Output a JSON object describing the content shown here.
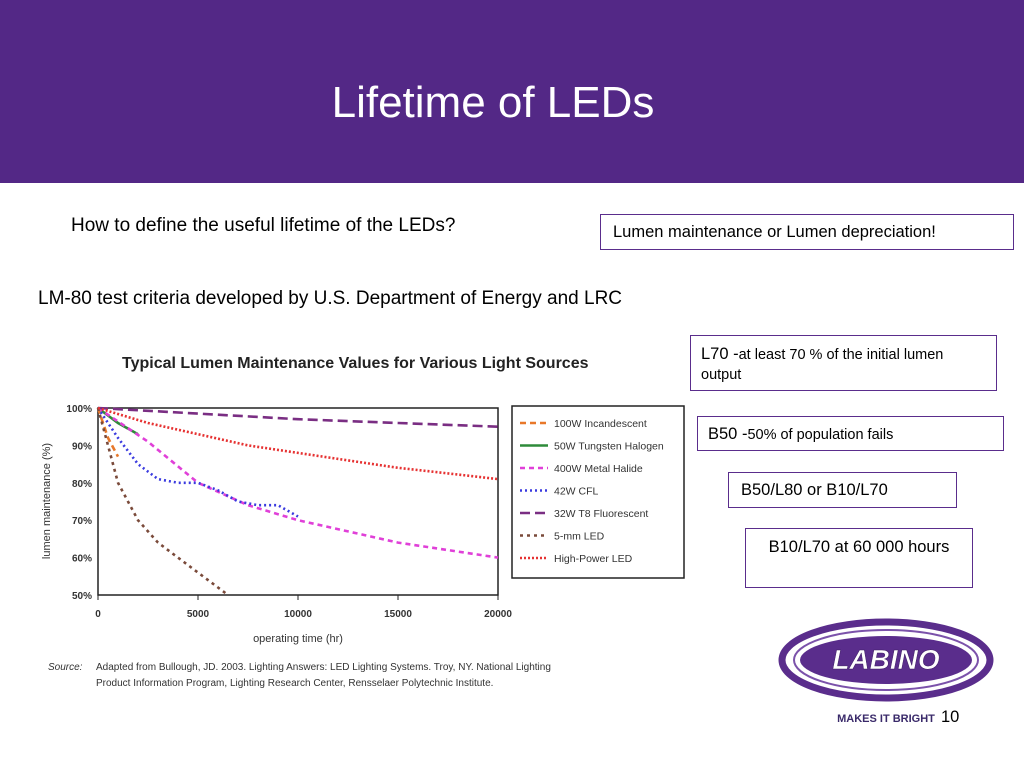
{
  "slide": {
    "title": "Lifetime of LEDs",
    "question": "How to define the useful lifetime of the LEDs?",
    "lm80": "LM-80 test criteria developed by U.S. Department of Energy and LRC",
    "page_number": "10"
  },
  "boxes": {
    "lumen": "Lumen maintenance or Lumen depreciation!",
    "l70_big": "L70 -",
    "l70_small": "at least 70 % of the initial lumen output",
    "b50_big": "B50 -",
    "b50_small": "50% of population fails",
    "b50l80": "B50/L80 or B10/L70",
    "b10l70": "B10/L70 at 60 000 hours"
  },
  "logo": {
    "name": "LABINO",
    "tagline": "MAKES IT BRIGHT"
  },
  "colors": {
    "header": "#532886",
    "border": "#5a2d8c"
  },
  "chart_data": {
    "type": "line",
    "title": "Typical Lumen Maintenance Values for Various Light Sources",
    "xlabel": "operating time (hr)",
    "ylabel": "lumen maintenance (%)",
    "xlim": [
      0,
      20000
    ],
    "ylim": [
      50,
      100
    ],
    "xticks": [
      "0",
      "5000",
      "10000",
      "15000",
      "20000"
    ],
    "yticks": [
      "100%",
      "90%",
      "80%",
      "70%",
      "60%",
      "50%"
    ],
    "grid": false,
    "legend_position": "right",
    "source_label": "Source:",
    "source_line1": "Adapted from Bullough, JD. 2003. Lighting Answers: LED Lighting Systems. Troy, NY. National Lighting",
    "source_line2": "Product Information Program, Lighting Research Center, Rensselaer Polytechnic Institute.",
    "series": [
      {
        "name": "100W Incandescent",
        "color": "#e8782a",
        "dash": "6,4",
        "x": [
          0,
          500,
          1000
        ],
        "y": [
          100,
          92,
          87
        ]
      },
      {
        "name": "50W Tungsten Halogen",
        "color": "#2e8b3a",
        "dash": "",
        "x": [
          0,
          1000,
          2000
        ],
        "y": [
          100,
          96,
          93
        ]
      },
      {
        "name": "400W Metal Halide",
        "color": "#e040d8",
        "dash": "5,4",
        "x": [
          0,
          2500,
          5000,
          7500,
          10000,
          12500,
          15000,
          17500,
          20000
        ],
        "y": [
          100,
          91,
          80,
          74,
          70,
          67,
          64,
          62,
          60
        ]
      },
      {
        "name": "42W CFL",
        "color": "#3a3adf",
        "dash": "2,3",
        "x": [
          0,
          1000,
          2000,
          3000,
          4000,
          5000,
          6000,
          7000,
          8000,
          9000,
          10000
        ],
        "y": [
          100,
          92,
          85,
          81,
          80,
          80,
          78,
          75,
          74,
          74,
          71
        ]
      },
      {
        "name": "32W T8 Fluorescent",
        "color": "#7a2e83",
        "dash": "10,5",
        "x": [
          0,
          5000,
          10000,
          15000,
          20000
        ],
        "y": [
          100,
          98.5,
          97,
          96,
          95
        ]
      },
      {
        "name": "5-mm LED",
        "color": "#7a4a3a",
        "dash": "3,4",
        "x": [
          0,
          1000,
          2000,
          3000,
          4000,
          5000,
          6000,
          6500
        ],
        "y": [
          100,
          80,
          70,
          64,
          60,
          56,
          52,
          50
        ]
      },
      {
        "name": "High-Power LED",
        "color": "#e63232",
        "dash": "2,2",
        "x": [
          0,
          2500,
          5000,
          7500,
          10000,
          12500,
          15000,
          17500,
          20000
        ],
        "y": [
          100,
          96,
          93,
          90,
          88,
          86,
          84,
          82.5,
          81
        ]
      }
    ]
  }
}
